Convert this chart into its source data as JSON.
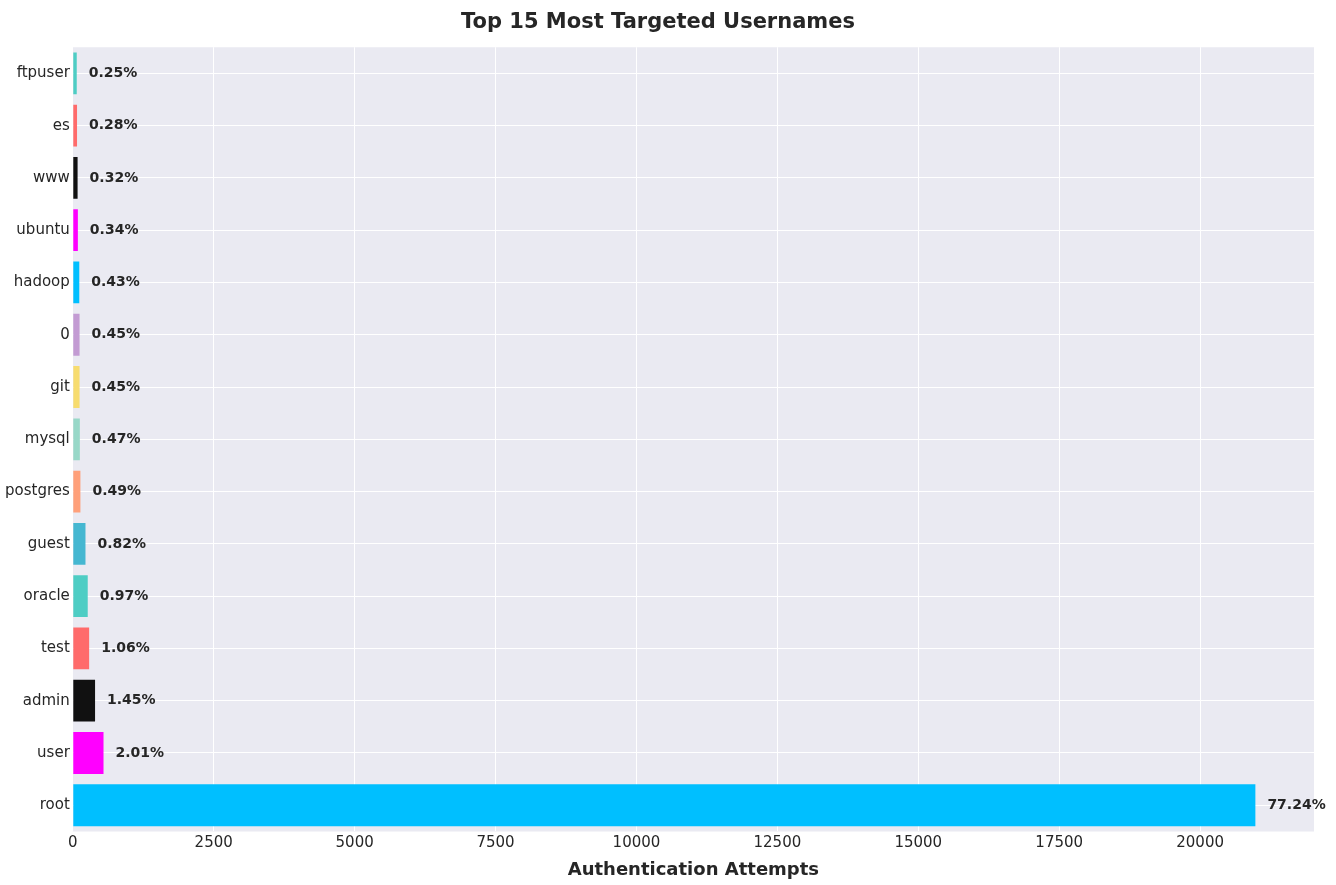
{
  "chart_data": {
    "type": "bar",
    "orientation": "horizontal",
    "title": "Top 15 Most Targeted Usernames",
    "xlabel": "Authentication Attempts",
    "categories": [
      "ftpuser",
      "es",
      "www",
      "ubuntu",
      "hadoop",
      "0",
      "git",
      "mysql",
      "postgres",
      "guest",
      "oracle",
      "test",
      "admin",
      "user",
      "root"
    ],
    "values": [
      70,
      75,
      85,
      90,
      115,
      120,
      120,
      125,
      135,
      225,
      265,
      290,
      395,
      545,
      20980
    ],
    "colors": [
      "#4ecdc4",
      "#ff6b6b",
      "#111111",
      "#ff00ff",
      "#00bfff",
      "#c39bd3",
      "#f7dc6f",
      "#98d8c8",
      "#ffa07a",
      "#45b7d1",
      "#4ecdc4",
      "#ff6b6b",
      "#111111",
      "#ff00ff",
      "#00bfff"
    ],
    "annotations": [
      {
        "text": "0.25%",
        "x": 70,
        "y": "ftpuser"
      },
      {
        "text": "0.28%",
        "x": 75,
        "y": "es"
      },
      {
        "text": "0.32%",
        "x": 85,
        "y": "www"
      },
      {
        "text": "0.34%",
        "x": 90,
        "y": "ubuntu"
      },
      {
        "text": "0.43%",
        "x": 115,
        "y": "hadoop"
      },
      {
        "text": "0.45%",
        "x": 120,
        "y": "0"
      },
      {
        "text": "0.45%",
        "x": 120,
        "y": "git"
      },
      {
        "text": "0.47%",
        "x": 125,
        "y": "mysql"
      },
      {
        "text": "0.49%",
        "x": 135,
        "y": "postgres"
      },
      {
        "text": "0.82%",
        "x": 225,
        "y": "guest"
      },
      {
        "text": "0.97%",
        "x": 265,
        "y": "oracle"
      },
      {
        "text": "1.06%",
        "x": 290,
        "y": "test"
      },
      {
        "text": "1.45%",
        "x": 395,
        "y": "admin"
      },
      {
        "text": "2.01%",
        "x": 545,
        "y": "user"
      },
      {
        "text": "77.24%",
        "x": 20980,
        "y": "root"
      }
    ],
    "xlim": [
      0,
      22020
    ],
    "xticks": [
      0,
      2500,
      5000,
      7500,
      10000,
      12500,
      15000,
      17500,
      20000
    ],
    "grid": true
  }
}
